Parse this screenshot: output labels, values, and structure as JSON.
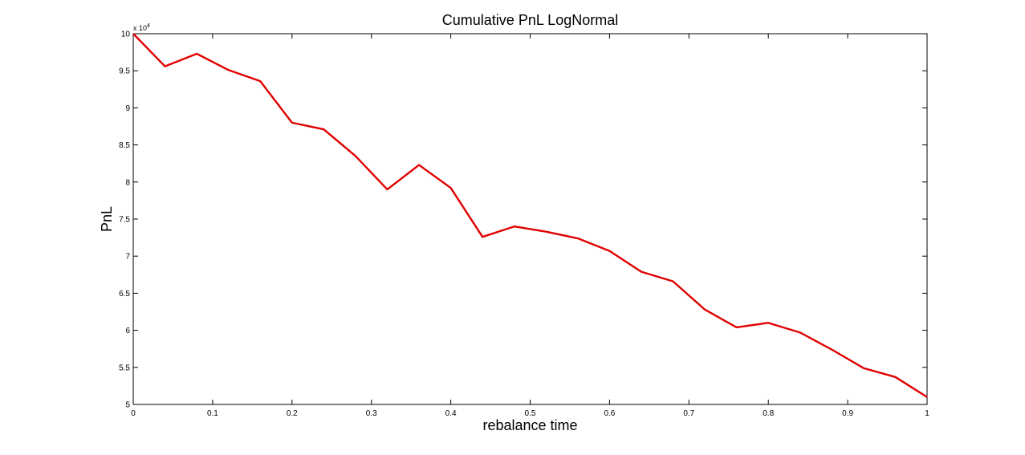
{
  "chart_data": {
    "type": "line",
    "title": "Cumulative PnL LogNormal",
    "xlabel": "rebalance time",
    "ylabel": "PnL",
    "y_exponent_base": "x 10",
    "y_exponent_power": "4",
    "xlim": [
      0,
      1
    ],
    "ylim": [
      5,
      10
    ],
    "x_ticks": [
      "0",
      "0.1",
      "0.2",
      "0.3",
      "0.4",
      "0.5",
      "0.6",
      "0.7",
      "0.8",
      "0.9",
      "1"
    ],
    "y_ticks": [
      "5",
      "5.5",
      "6",
      "6.5",
      "7",
      "7.5",
      "8",
      "8.5",
      "9",
      "9.5",
      "10"
    ],
    "grid": false,
    "series": [
      {
        "color": "#e00000",
        "x": [
          0,
          0.04,
          0.08,
          0.12,
          0.16,
          0.2,
          0.24,
          0.28,
          0.32,
          0.36,
          0.4,
          0.44,
          0.48,
          0.52,
          0.56,
          0.6,
          0.64,
          0.68,
          0.72,
          0.76,
          0.8,
          0.84,
          0.88,
          0.92,
          0.96,
          1.0
        ],
        "y": [
          10.0,
          9.56,
          9.73,
          9.51,
          9.36,
          8.8,
          8.71,
          8.35,
          7.9,
          8.23,
          7.92,
          7.26,
          7.4,
          7.33,
          7.24,
          7.07,
          6.79,
          6.66,
          6.28,
          6.04,
          6.1,
          5.97,
          5.74,
          5.49,
          5.37,
          5.1
        ]
      }
    ]
  }
}
